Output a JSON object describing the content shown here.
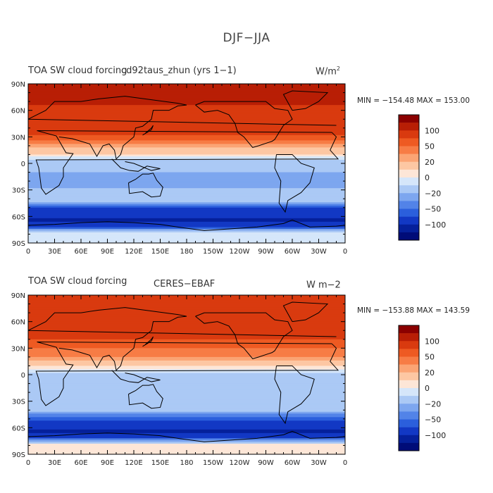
{
  "figure_title": "DJF−JJA",
  "panels": [
    {
      "left_title": "TOA SW cloud forcing",
      "center_title": "cd92taus_zhun (yrs 1−1)",
      "units_prefix": "W/m",
      "units_sup": "2",
      "min_label": "MIN = −154.48",
      "max_label": "MAX = 153.00"
    },
    {
      "left_title": "TOA SW cloud forcing",
      "center_title": "CERES−EBAF",
      "units_prefix": "W m−2",
      "units_sup": "",
      "min_label": "MIN = −153.88",
      "max_label": "MAX = 143.59"
    }
  ],
  "chart_data": {
    "type": "heatmap",
    "title": "DJF−JJA",
    "variable": "TOA SW cloud forcing",
    "x_tick_labels": [
      "0",
      "30E",
      "60E",
      "90E",
      "120E",
      "150E",
      "180",
      "150W",
      "120W",
      "90W",
      "60W",
      "30W",
      "0"
    ],
    "y_tick_labels": [
      "90N",
      "60N",
      "30N",
      "0",
      "30S",
      "60S",
      "90S"
    ],
    "xlim": [
      0,
      360
    ],
    "ylim": [
      -90,
      90
    ],
    "colorbar_levels": [
      -120,
      -100,
      -80,
      -60,
      -50,
      -40,
      -30,
      -20,
      -10,
      0,
      10,
      20,
      30,
      40,
      50,
      60,
      80,
      100,
      120
    ],
    "colorbar_tick_labels": [
      "100",
      "50",
      "20",
      "0",
      "−20",
      "−50",
      "−100"
    ],
    "colorbar_colors": [
      "#8b0000",
      "#b81e05",
      "#d93a0f",
      "#ee5a22",
      "#f77c45",
      "#fba474",
      "#fdc7a3",
      "#fde6d7",
      "#d5e6fa",
      "#abc9f5",
      "#7da6ef",
      "#5283e8",
      "#2b5fdc",
      "#1238c4",
      "#05209b",
      "#000c78"
    ],
    "panel_labels": [
      "cd92taus_zhun (yrs 1−1)",
      "CERES−EBAF"
    ],
    "band_values_by_latitude": {
      "latitudes": [
        80,
        60,
        40,
        20,
        0,
        -20,
        -40,
        -55,
        -65,
        -80
      ],
      "model": [
        110,
        95,
        80,
        35,
        -20,
        -40,
        -15,
        -80,
        -110,
        0
      ],
      "obs": [
        75,
        80,
        60,
        40,
        -15,
        -30,
        -25,
        -70,
        -110,
        10
      ]
    }
  }
}
